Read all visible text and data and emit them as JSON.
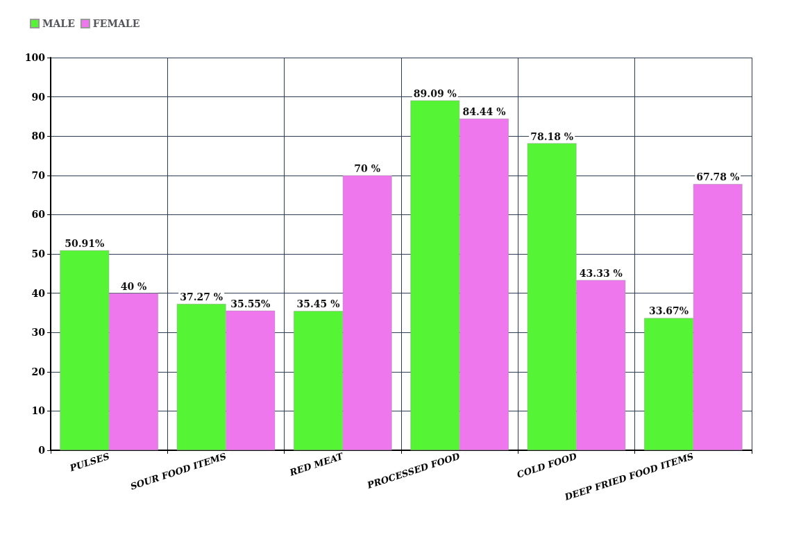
{
  "chart_data": {
    "type": "bar",
    "categories": [
      "PULSES",
      "SOUR FOOD ITEMS",
      "RED MEAT",
      "PROCESSED FOOD",
      "COLD FOOD",
      "DEEP FRIED FOOD ITEMS"
    ],
    "series": [
      {
        "name": "MALE",
        "color": "#55f535",
        "values": [
          50.91,
          37.27,
          35.45,
          89.09,
          78.18,
          33.67
        ],
        "value_labels": [
          "50.91%",
          "37.27 %",
          "35.45 %",
          "89.09 %",
          "78.18 %",
          "33.67%"
        ]
      },
      {
        "name": "FEMALE",
        "color": "#ee77ee",
        "values": [
          40,
          35.55,
          70,
          84.44,
          43.33,
          67.78
        ],
        "value_labels": [
          "40 %",
          "35.55%",
          "70 %",
          "84.44 %",
          "43.33 %",
          "67.78 %"
        ]
      }
    ],
    "ylim": [
      0,
      100
    ],
    "yticks": [
      0,
      10,
      20,
      30,
      40,
      50,
      60,
      70,
      80,
      90,
      100
    ],
    "grid": true,
    "legend": "top left"
  }
}
